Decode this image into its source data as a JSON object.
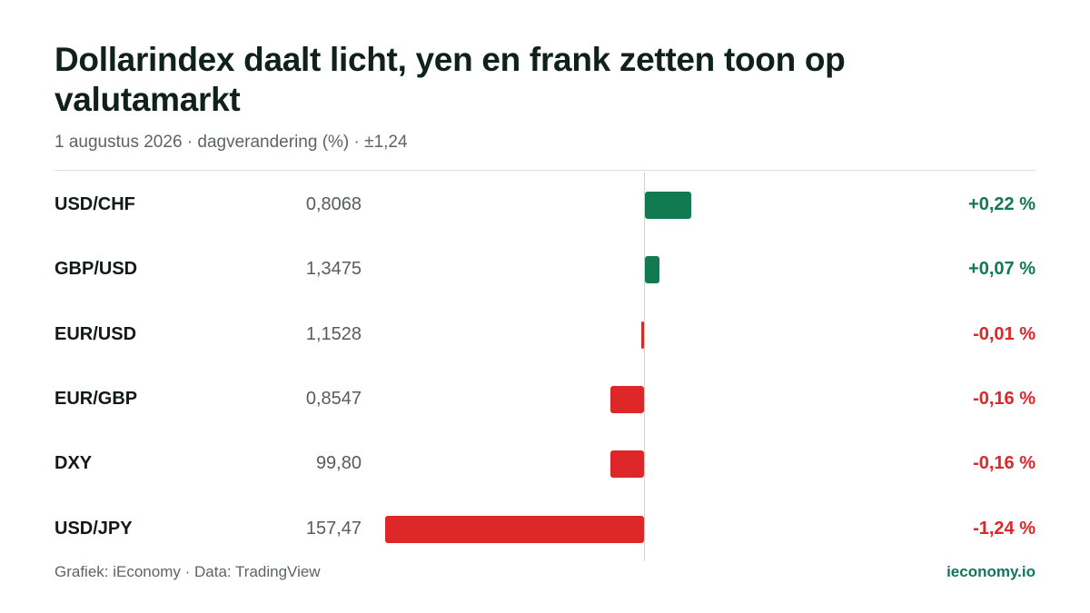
{
  "header": {
    "title": "Dollarindex daalt licht, yen en frank zetten toon op valutamarkt",
    "subtitle": "1 augustus 2026 · dagverandering (%) · ±1,24"
  },
  "footer": {
    "source": "Grafiek: iEconomy · Data: TradingView",
    "brand": "ieconomy.io"
  },
  "colors": {
    "positive": "#117a50",
    "negative": "#de2728",
    "brand": "#12765a"
  },
  "chart_data": {
    "type": "bar",
    "orientation": "horizontal",
    "title": "Dollarindex daalt licht, yen en frank zetten toon op valutamarkt",
    "subtitle": "1 augustus 2026 · dagverandering (%) · ±1,24",
    "xlim": [
      -1.24,
      1.24
    ],
    "grid": false,
    "rows": [
      {
        "pair": "USD/CHF",
        "price": "0,8068",
        "value": 0.22,
        "label": "+0,22 %"
      },
      {
        "pair": "GBP/USD",
        "price": "1,3475",
        "value": 0.07,
        "label": "+0,07 %"
      },
      {
        "pair": "EUR/USD",
        "price": "1,1528",
        "value": -0.01,
        "label": "-0,01 %"
      },
      {
        "pair": "EUR/GBP",
        "price": "0,8547",
        "value": -0.16,
        "label": "-0,16 %"
      },
      {
        "pair": "DXY",
        "price": "99,80",
        "value": -0.16,
        "label": "-0,16 %"
      },
      {
        "pair": "USD/JPY",
        "price": "157,47",
        "value": -1.24,
        "label": "-1,24 %"
      }
    ]
  }
}
